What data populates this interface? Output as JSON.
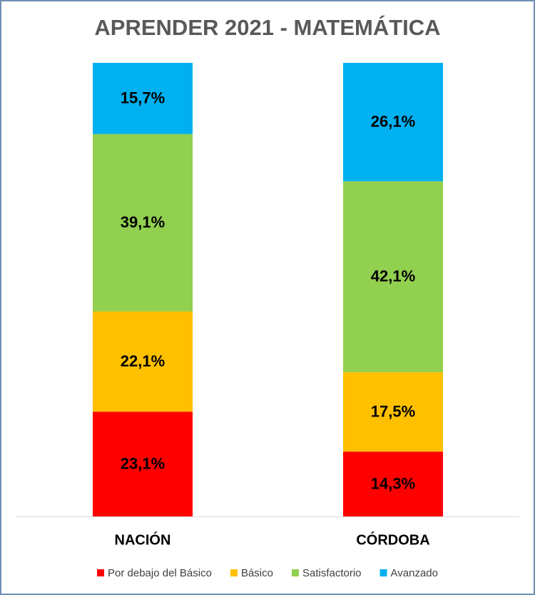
{
  "chart_data": {
    "type": "stacked-bar",
    "title": "APRENDER 2021 - MATEMÁTICA",
    "categories": [
      "NACIÓN",
      "CÓRDOBA"
    ],
    "series": [
      {
        "name": "Por debajo del Básico",
        "color": "#ff0000",
        "values": [
          23.1,
          14.3
        ],
        "value_labels": [
          "23,1%",
          "14,3%"
        ]
      },
      {
        "name": "Básico",
        "color": "#ffc000",
        "values": [
          22.1,
          17.5
        ],
        "value_labels": [
          "22,1%",
          "17,5%"
        ]
      },
      {
        "name": "Satisfactorio",
        "color": "#92d050",
        "values": [
          39.1,
          42.1
        ],
        "value_labels": [
          "39,1%",
          "42,1%"
        ]
      },
      {
        "name": "Avanzado",
        "color": "#00b0f0",
        "values": [
          15.7,
          26.1
        ],
        "value_labels": [
          "15,7%",
          "26,1%"
        ]
      }
    ],
    "legend": "bottom"
  }
}
